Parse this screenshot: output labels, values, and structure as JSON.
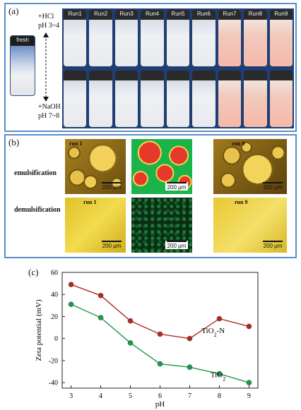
{
  "panel_a": {
    "label": "(a)",
    "fresh_label": "fresh",
    "acid_text": "+HCl",
    "acid_ph": "pH 3~4",
    "base_text": "+NaOH",
    "base_ph": "pH 7~8",
    "runs": [
      "Run1",
      "Run2",
      "Run3",
      "Run4",
      "Run5",
      "Run6",
      "Run7",
      "Run8",
      "Run9"
    ]
  },
  "panel_b": {
    "label": "(b)",
    "row1_label": "emulsification",
    "row2_label": "demulsification",
    "run1": "run 1",
    "run9": "run 9",
    "scale_text": "200 μm"
  },
  "panel_c": {
    "label": "(c)"
  },
  "chart_data": {
    "type": "line",
    "xlabel": "pH",
    "ylabel": "Zeta potential (mV)",
    "xlim": [
      2.7,
      9.3
    ],
    "ylim": [
      -45,
      60
    ],
    "xticks": [
      3,
      4,
      5,
      6,
      7,
      8,
      9
    ],
    "yticks": [
      -40,
      -20,
      0,
      20,
      40,
      60
    ],
    "series": [
      {
        "name": "TiO2-N",
        "color": "#b02a22",
        "x": [
          3,
          4,
          5,
          6,
          7,
          8,
          9
        ],
        "y": [
          49,
          39,
          16,
          4,
          0,
          18,
          11
        ]
      },
      {
        "name": "TiO2",
        "color": "#1c9a4a",
        "x": [
          3,
          4,
          5,
          6,
          7,
          8,
          9
        ],
        "y": [
          31,
          19,
          -4,
          -23,
          -26,
          -32,
          -40
        ]
      }
    ]
  }
}
